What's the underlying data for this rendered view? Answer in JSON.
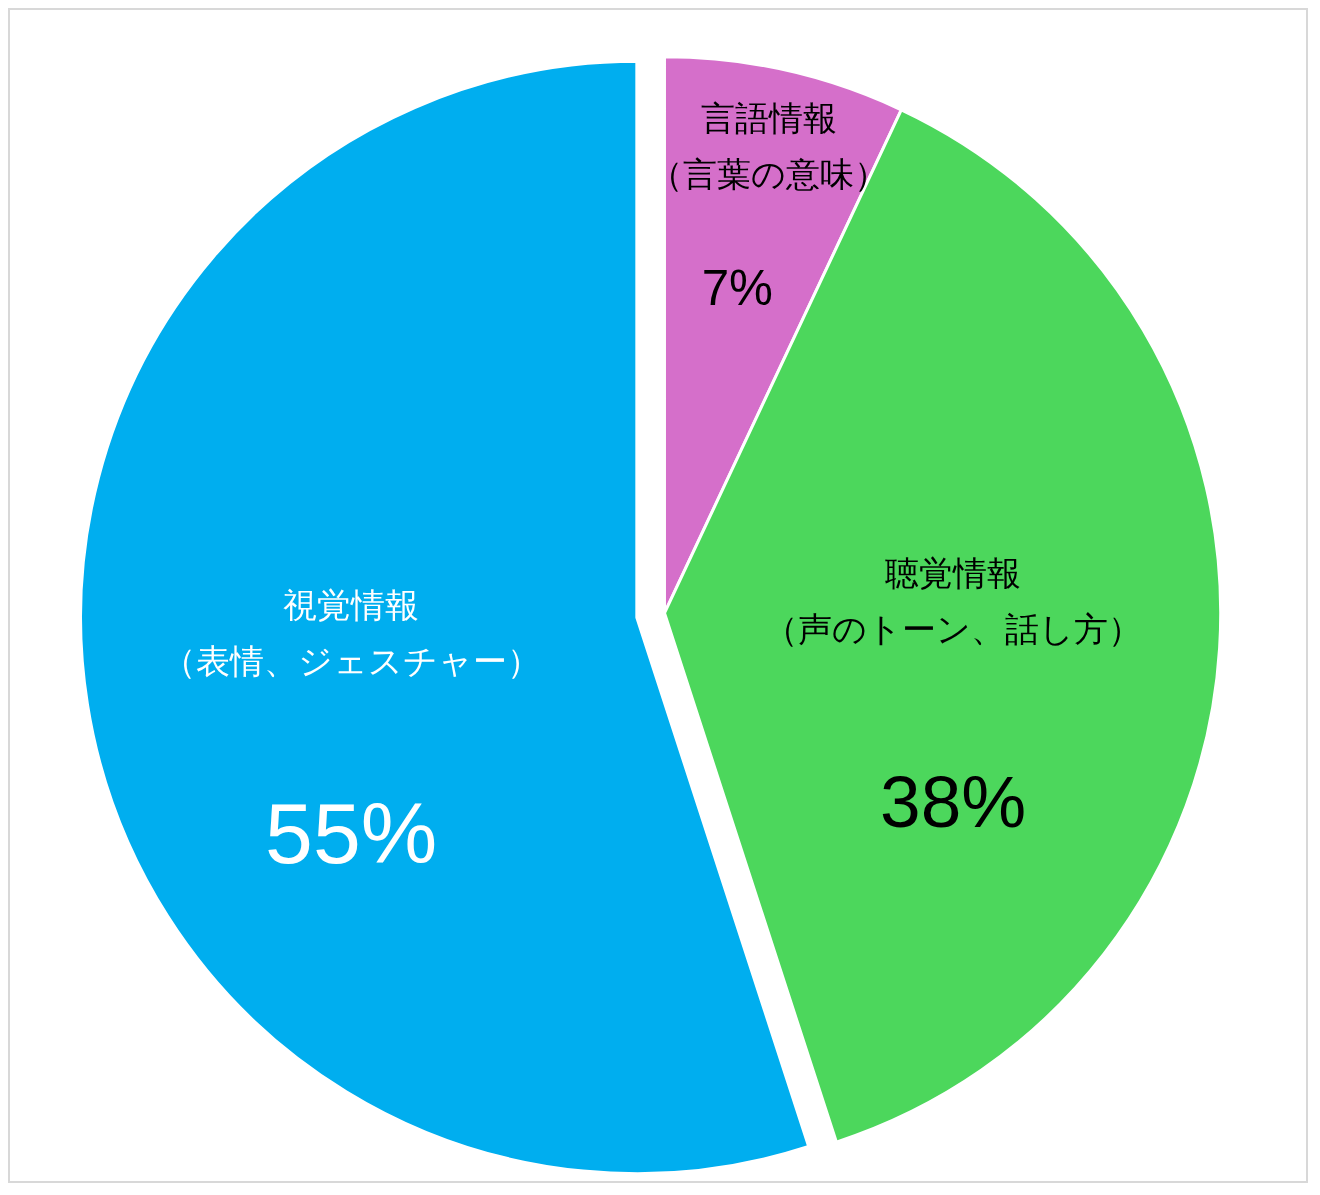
{
  "chart_data": {
    "type": "pie",
    "categories": [
      "言語情報（言葉の意味）",
      "聴覚情報（声のトーン、話し方）",
      "視覚情報（表情、ジェスチャー）"
    ],
    "values": [
      7,
      38,
      55
    ],
    "colors": [
      "#d56fca",
      "#4cd75c",
      "#00aeef"
    ],
    "value_labels": [
      "7%",
      "38%",
      "55%"
    ],
    "legend": false
  }
}
